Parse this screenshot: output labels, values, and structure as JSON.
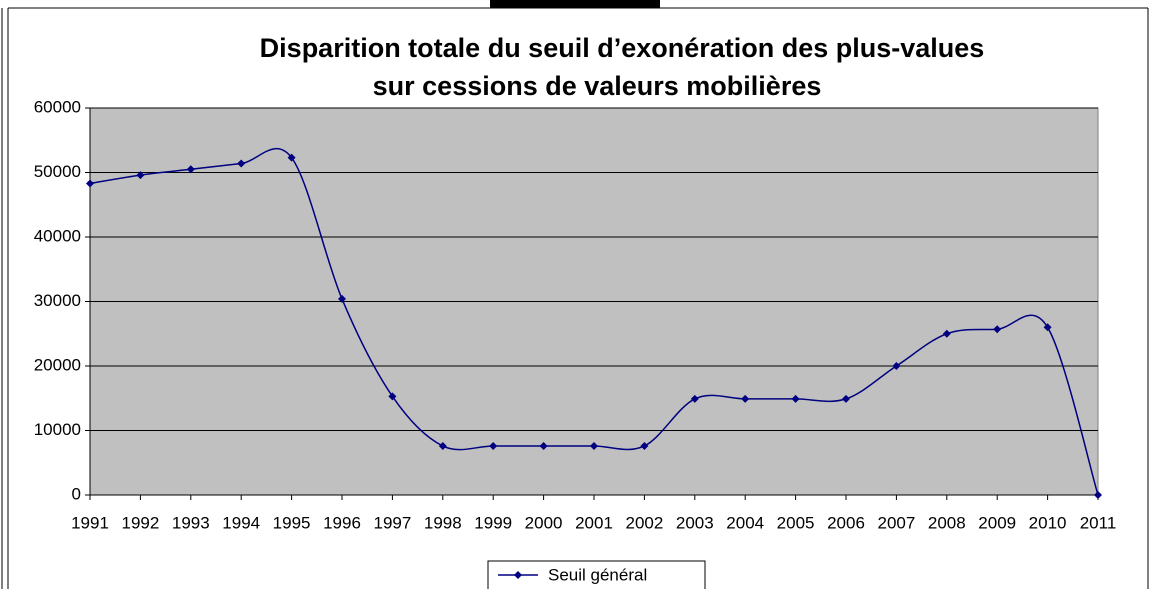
{
  "chart_data": {
    "type": "line",
    "title": [
      "Disparition totale du seuil d’exonération des plus-values",
      "sur cessions de valeurs mobilières"
    ],
    "categories": [
      "1991",
      "1992",
      "1993",
      "1994",
      "1995",
      "1996",
      "1997",
      "1998",
      "1999",
      "2000",
      "2001",
      "2002",
      "2003",
      "2004",
      "2005",
      "2006",
      "2007",
      "2008",
      "2009",
      "2010",
      "2011"
    ],
    "series": [
      {
        "name": "Seuil général",
        "color": "#000080",
        "values": [
          48300,
          49600,
          50500,
          51400,
          52300,
          30400,
          15300,
          7600,
          7600,
          7600,
          7600,
          7600,
          14900,
          14900,
          14900,
          14900,
          20000,
          25000,
          25700,
          26000,
          0
        ]
      }
    ],
    "ylim": [
      0,
      60000
    ],
    "yticks": [
      0,
      10000,
      20000,
      30000,
      40000,
      50000,
      60000
    ],
    "grid": true,
    "smooth": true,
    "legend": "bottom",
    "plot_background": "#c0c0c0"
  }
}
